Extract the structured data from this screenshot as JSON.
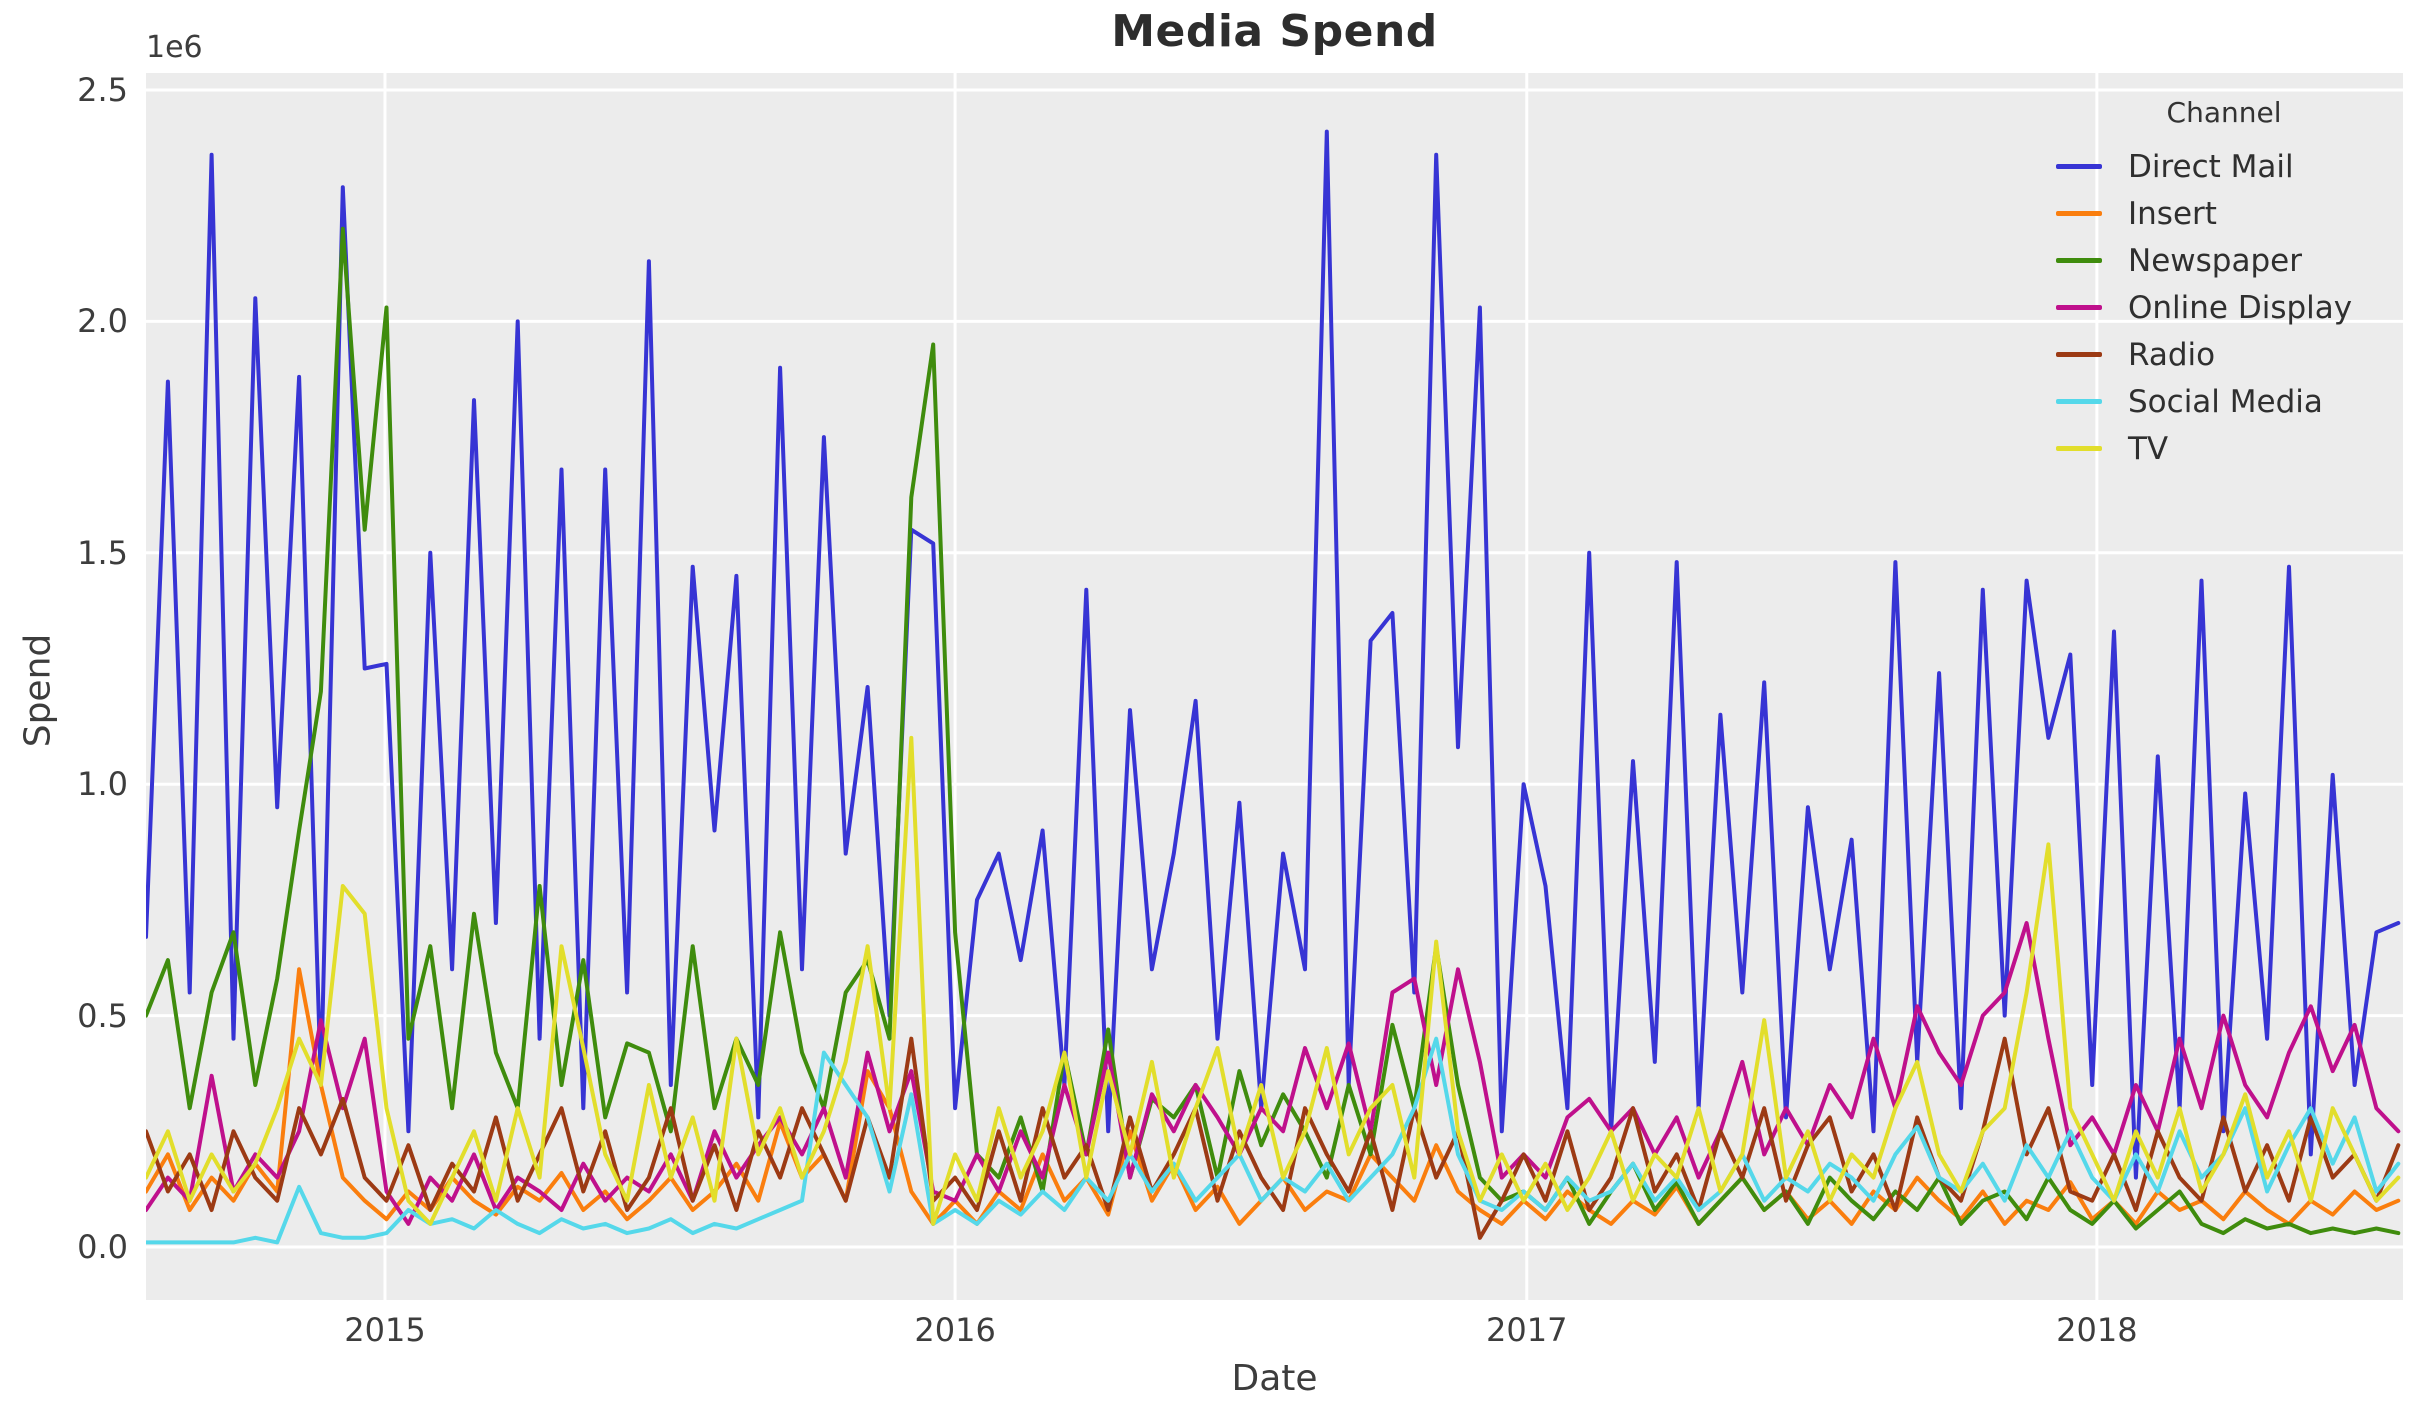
{
  "figure": {
    "title": "Media Spend",
    "x_axis_label": "Date",
    "y_axis_label": "Spend",
    "y_offset_label": "1e6",
    "legend_title": "Channel"
  },
  "chart_data": {
    "type": "line",
    "title": "Media Spend",
    "xlabel": "Date",
    "ylabel": "Spend",
    "y_offset_label": "1e6",
    "legend_title": "Channel",
    "legend_position": "upper right",
    "grid": true,
    "plot_bg": "#ececec",
    "grid_color": "#ffffff",
    "x_start_date": "2014-08-01",
    "x_total_days": 1445,
    "point_step_days": 14,
    "x_ticks": [
      {
        "label": "2015",
        "day": 153
      },
      {
        "label": "2016",
        "day": 518
      },
      {
        "label": "2017",
        "day": 884
      },
      {
        "label": "2018",
        "day": 1249
      }
    ],
    "y_ticks": [
      {
        "label": "0.0",
        "value": 0
      },
      {
        "label": "0.5",
        "value": 500000
      },
      {
        "label": "1.0",
        "value": 1000000
      },
      {
        "label": "1.5",
        "value": 1500000
      },
      {
        "label": "2.0",
        "value": 2000000
      },
      {
        "label": "2.5",
        "value": 2500000
      }
    ],
    "ylim": [
      -114500,
      2536700
    ],
    "value_unit_multiplier": 1000000,
    "series": [
      {
        "name": "Direct Mail",
        "color": "#3734d4",
        "values": [
          0.67,
          1.87,
          0.55,
          2.36,
          0.45,
          2.05,
          0.95,
          1.88,
          0.35,
          2.29,
          1.25,
          1.26,
          0.25,
          1.5,
          0.6,
          1.83,
          0.7,
          2.0,
          0.45,
          1.68,
          0.3,
          1.68,
          0.55,
          2.13,
          0.35,
          1.47,
          0.9,
          1.45,
          0.28,
          1.9,
          0.6,
          1.75,
          0.85,
          1.21,
          0.5,
          1.55,
          1.52,
          0.3,
          0.75,
          0.85,
          0.62,
          0.9,
          0.35,
          1.42,
          0.25,
          1.16,
          0.6,
          0.85,
          1.18,
          0.45,
          0.96,
          0.3,
          0.85,
          0.6,
          2.41,
          0.35,
          1.31,
          1.37,
          0.55,
          2.36,
          1.08,
          2.03,
          0.25,
          1.0,
          0.78,
          0.3,
          1.5,
          0.25,
          1.05,
          0.4,
          1.48,
          0.3,
          1.15,
          0.55,
          1.22,
          0.28,
          0.95,
          0.6,
          0.88,
          0.25,
          1.48,
          0.4,
          1.24,
          0.3,
          1.42,
          0.5,
          1.44,
          1.1,
          1.28,
          0.35,
          1.33,
          0.15,
          1.06,
          0.3,
          1.44,
          0.25,
          0.98,
          0.45,
          1.47,
          0.2,
          1.02,
          0.35,
          0.68,
          0.7
        ]
      },
      {
        "name": "Insert",
        "color": "#fa7e0e",
        "values": [
          0.12,
          0.2,
          0.08,
          0.15,
          0.1,
          0.18,
          0.12,
          0.6,
          0.35,
          0.15,
          0.1,
          0.06,
          0.12,
          0.08,
          0.15,
          0.1,
          0.07,
          0.13,
          0.1,
          0.16,
          0.08,
          0.12,
          0.06,
          0.1,
          0.15,
          0.08,
          0.12,
          0.18,
          0.1,
          0.27,
          0.15,
          0.2,
          0.1,
          0.38,
          0.3,
          0.12,
          0.05,
          0.1,
          0.05,
          0.12,
          0.08,
          0.2,
          0.1,
          0.15,
          0.07,
          0.25,
          0.1,
          0.18,
          0.08,
          0.13,
          0.05,
          0.1,
          0.15,
          0.08,
          0.12,
          0.1,
          0.2,
          0.15,
          0.1,
          0.22,
          0.12,
          0.08,
          0.05,
          0.1,
          0.06,
          0.12,
          0.08,
          0.05,
          0.1,
          0.07,
          0.13,
          0.05,
          0.1,
          0.15,
          0.08,
          0.12,
          0.06,
          0.1,
          0.05,
          0.12,
          0.08,
          0.15,
          0.1,
          0.06,
          0.12,
          0.05,
          0.1,
          0.08,
          0.14,
          0.06,
          0.1,
          0.05,
          0.12,
          0.08,
          0.1,
          0.06,
          0.12,
          0.08,
          0.05,
          0.1,
          0.07,
          0.12,
          0.08,
          0.1
        ]
      },
      {
        "name": "Newspaper",
        "color": "#3f8c0d",
        "values": [
          0.5,
          0.62,
          0.3,
          0.55,
          0.68,
          0.35,
          0.58,
          0.9,
          1.2,
          2.2,
          1.55,
          2.03,
          0.45,
          0.65,
          0.3,
          0.72,
          0.42,
          0.3,
          0.78,
          0.35,
          0.62,
          0.28,
          0.44,
          0.42,
          0.25,
          0.65,
          0.3,
          0.45,
          0.35,
          0.68,
          0.42,
          0.3,
          0.55,
          0.62,
          0.45,
          1.62,
          1.95,
          0.68,
          0.2,
          0.15,
          0.28,
          0.12,
          0.42,
          0.2,
          0.47,
          0.15,
          0.32,
          0.28,
          0.35,
          0.15,
          0.38,
          0.22,
          0.33,
          0.25,
          0.15,
          0.35,
          0.2,
          0.48,
          0.3,
          0.65,
          0.35,
          0.15,
          0.1,
          0.12,
          0.08,
          0.15,
          0.05,
          0.12,
          0.18,
          0.08,
          0.14,
          0.05,
          0.1,
          0.15,
          0.08,
          0.12,
          0.05,
          0.15,
          0.1,
          0.06,
          0.12,
          0.08,
          0.15,
          0.05,
          0.1,
          0.12,
          0.06,
          0.15,
          0.08,
          0.05,
          0.1,
          0.04,
          0.08,
          0.12,
          0.05,
          0.03,
          0.06,
          0.04,
          0.05,
          0.03,
          0.04,
          0.03,
          0.04,
          0.03
        ]
      },
      {
        "name": "Online Display",
        "color": "#bf108c",
        "values": [
          0.08,
          0.15,
          0.1,
          0.37,
          0.12,
          0.2,
          0.15,
          0.25,
          0.49,
          0.3,
          0.45,
          0.12,
          0.05,
          0.15,
          0.1,
          0.2,
          0.08,
          0.15,
          0.12,
          0.08,
          0.18,
          0.1,
          0.15,
          0.12,
          0.2,
          0.1,
          0.25,
          0.15,
          0.22,
          0.28,
          0.2,
          0.3,
          0.15,
          0.42,
          0.25,
          0.38,
          0.12,
          0.1,
          0.2,
          0.12,
          0.25,
          0.15,
          0.35,
          0.2,
          0.42,
          0.15,
          0.33,
          0.25,
          0.35,
          0.28,
          0.2,
          0.3,
          0.25,
          0.43,
          0.3,
          0.44,
          0.25,
          0.55,
          0.58,
          0.35,
          0.6,
          0.4,
          0.15,
          0.2,
          0.15,
          0.28,
          0.32,
          0.25,
          0.3,
          0.2,
          0.28,
          0.15,
          0.25,
          0.4,
          0.2,
          0.3,
          0.22,
          0.35,
          0.28,
          0.45,
          0.3,
          0.52,
          0.42,
          0.35,
          0.5,
          0.55,
          0.7,
          0.45,
          0.22,
          0.28,
          0.2,
          0.35,
          0.25,
          0.45,
          0.3,
          0.5,
          0.35,
          0.28,
          0.42,
          0.52,
          0.38,
          0.48,
          0.3,
          0.25
        ]
      },
      {
        "name": "Radio",
        "color": "#9c3a14",
        "values": [
          0.25,
          0.12,
          0.2,
          0.08,
          0.25,
          0.15,
          0.1,
          0.3,
          0.2,
          0.32,
          0.15,
          0.1,
          0.22,
          0.08,
          0.18,
          0.12,
          0.28,
          0.1,
          0.2,
          0.3,
          0.12,
          0.25,
          0.08,
          0.15,
          0.3,
          0.1,
          0.22,
          0.08,
          0.25,
          0.15,
          0.3,
          0.2,
          0.1,
          0.28,
          0.15,
          0.45,
          0.1,
          0.15,
          0.08,
          0.25,
          0.1,
          0.3,
          0.15,
          0.22,
          0.08,
          0.28,
          0.12,
          0.2,
          0.3,
          0.1,
          0.25,
          0.15,
          0.08,
          0.3,
          0.2,
          0.12,
          0.25,
          0.08,
          0.3,
          0.15,
          0.25,
          0.02,
          0.1,
          0.2,
          0.1,
          0.25,
          0.08,
          0.15,
          0.3,
          0.12,
          0.2,
          0.08,
          0.25,
          0.15,
          0.3,
          0.1,
          0.22,
          0.28,
          0.12,
          0.2,
          0.08,
          0.28,
          0.15,
          0.1,
          0.25,
          0.45,
          0.2,
          0.3,
          0.12,
          0.1,
          0.2,
          0.08,
          0.25,
          0.15,
          0.1,
          0.28,
          0.12,
          0.22,
          0.1,
          0.28,
          0.15,
          0.2,
          0.1,
          0.22
        ]
      },
      {
        "name": "Social Media",
        "color": "#55d8ea",
        "values": [
          0.01,
          0.01,
          0.01,
          0.01,
          0.01,
          0.02,
          0.01,
          0.13,
          0.03,
          0.02,
          0.02,
          0.03,
          0.08,
          0.05,
          0.06,
          0.04,
          0.08,
          0.05,
          0.03,
          0.06,
          0.04,
          0.05,
          0.03,
          0.04,
          0.06,
          0.03,
          0.05,
          0.04,
          0.06,
          0.08,
          0.1,
          0.42,
          0.35,
          0.28,
          0.12,
          0.33,
          0.05,
          0.08,
          0.05,
          0.1,
          0.07,
          0.12,
          0.08,
          0.15,
          0.1,
          0.2,
          0.12,
          0.18,
          0.1,
          0.15,
          0.2,
          0.1,
          0.15,
          0.12,
          0.18,
          0.1,
          0.15,
          0.2,
          0.3,
          0.45,
          0.2,
          0.1,
          0.08,
          0.12,
          0.08,
          0.15,
          0.1,
          0.12,
          0.18,
          0.1,
          0.15,
          0.08,
          0.12,
          0.2,
          0.1,
          0.15,
          0.12,
          0.18,
          0.15,
          0.1,
          0.2,
          0.26,
          0.15,
          0.12,
          0.18,
          0.1,
          0.22,
          0.15,
          0.25,
          0.15,
          0.1,
          0.2,
          0.12,
          0.25,
          0.15,
          0.2,
          0.3,
          0.12,
          0.22,
          0.3,
          0.18,
          0.28,
          0.12,
          0.18
        ]
      },
      {
        "name": "TV",
        "color": "#e2de2b",
        "values": [
          0.15,
          0.25,
          0.1,
          0.2,
          0.12,
          0.18,
          0.3,
          0.45,
          0.35,
          0.78,
          0.72,
          0.3,
          0.1,
          0.05,
          0.15,
          0.25,
          0.1,
          0.3,
          0.15,
          0.65,
          0.43,
          0.2,
          0.1,
          0.35,
          0.15,
          0.28,
          0.1,
          0.45,
          0.2,
          0.3,
          0.15,
          0.25,
          0.4,
          0.65,
          0.3,
          1.1,
          0.05,
          0.2,
          0.1,
          0.3,
          0.15,
          0.25,
          0.42,
          0.15,
          0.38,
          0.2,
          0.4,
          0.15,
          0.3,
          0.43,
          0.2,
          0.35,
          0.15,
          0.25,
          0.43,
          0.2,
          0.3,
          0.35,
          0.15,
          0.66,
          0.25,
          0.1,
          0.2,
          0.1,
          0.18,
          0.08,
          0.15,
          0.25,
          0.1,
          0.2,
          0.15,
          0.3,
          0.12,
          0.2,
          0.49,
          0.15,
          0.25,
          0.1,
          0.2,
          0.15,
          0.3,
          0.4,
          0.2,
          0.12,
          0.25,
          0.3,
          0.55,
          0.87,
          0.3,
          0.2,
          0.1,
          0.25,
          0.15,
          0.3,
          0.12,
          0.2,
          0.33,
          0.15,
          0.25,
          0.1,
          0.3,
          0.2,
          0.1,
          0.15
        ]
      }
    ]
  }
}
